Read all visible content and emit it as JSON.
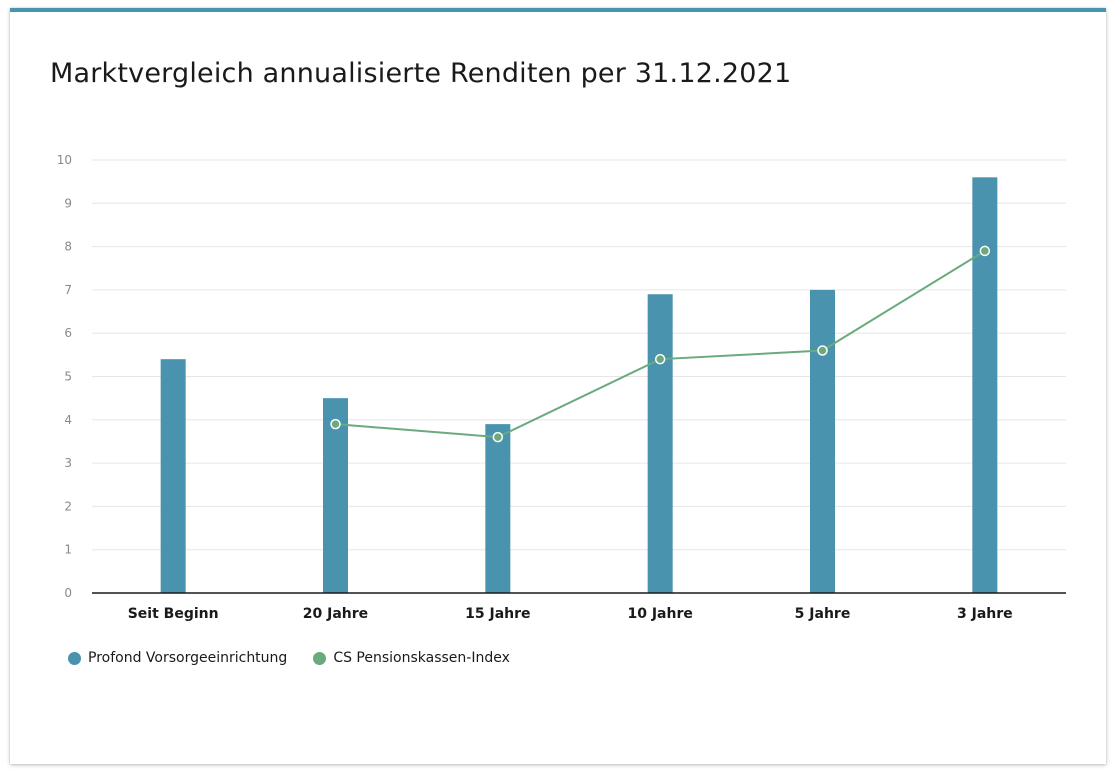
{
  "chart_data": {
    "type": "bar",
    "title": "Marktvergleich annualisierte Renditen per 31.12.2021",
    "categories": [
      "Seit Beginn",
      "20 Jahre",
      "15 Jahre",
      "10 Jahre",
      "5 Jahre",
      "3 Jahre"
    ],
    "series": [
      {
        "name": "Profond Vorsorgeeinrichtung",
        "type": "bar",
        "color": "#4a93ae",
        "values": [
          5.4,
          4.5,
          3.9,
          6.9,
          7.0,
          9.6
        ]
      },
      {
        "name": "CS Pensionskassen-Index",
        "type": "line",
        "color": "#6aaa7d",
        "values": [
          null,
          3.9,
          3.6,
          5.4,
          5.6,
          7.9
        ]
      }
    ],
    "ylim": [
      0,
      10
    ],
    "yticks": [
      0,
      1,
      2,
      3,
      4,
      5,
      6,
      7,
      8,
      9,
      10
    ],
    "xlabel": "",
    "ylabel": "",
    "grid": true,
    "legend": "bottom-left"
  }
}
